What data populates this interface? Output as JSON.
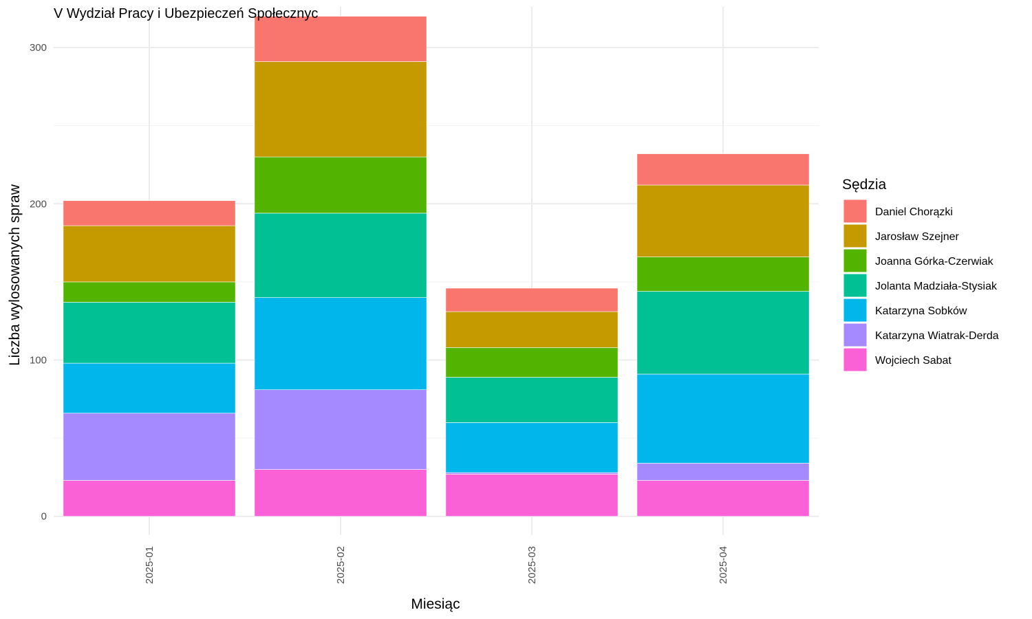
{
  "chart_data": {
    "type": "bar",
    "stacked": true,
    "title": "V Wydział Pracy i Ubezpieczeń Społecznyc",
    "xlabel": "Miesiąc",
    "ylabel": "Liczba wylosowanych spraw",
    "legend_title": "Sędzia",
    "legend_position": "right",
    "grid": true,
    "ylim": [
      -12,
      326
    ],
    "yticks": [
      0,
      100,
      200,
      300
    ],
    "categories": [
      "2025-01",
      "2025-02",
      "2025-03",
      "2025-04"
    ],
    "series": [
      {
        "name": "Daniel Chorązki",
        "color": "#F8766D",
        "values": [
          16,
          29,
          15,
          20
        ]
      },
      {
        "name": "Jarosław Szejner",
        "color": "#C49A00",
        "values": [
          36,
          61,
          23,
          46
        ]
      },
      {
        "name": "Joanna Górka-Czerwiak",
        "color": "#53B400",
        "values": [
          13,
          36,
          19,
          22
        ]
      },
      {
        "name": "Jolanta Madziała-Stysiak",
        "color": "#00C094",
        "values": [
          39,
          54,
          29,
          53
        ]
      },
      {
        "name": "Katarzyna Sobków",
        "color": "#00B6EB",
        "values": [
          32,
          59,
          32,
          57
        ]
      },
      {
        "name": "Katarzyna Wiatrak-Derda",
        "color": "#A58AFF",
        "values": [
          43,
          51,
          1,
          11
        ]
      },
      {
        "name": "Wojciech Sabat",
        "color": "#FB61D7",
        "values": [
          23,
          30,
          27,
          23
        ]
      }
    ]
  }
}
